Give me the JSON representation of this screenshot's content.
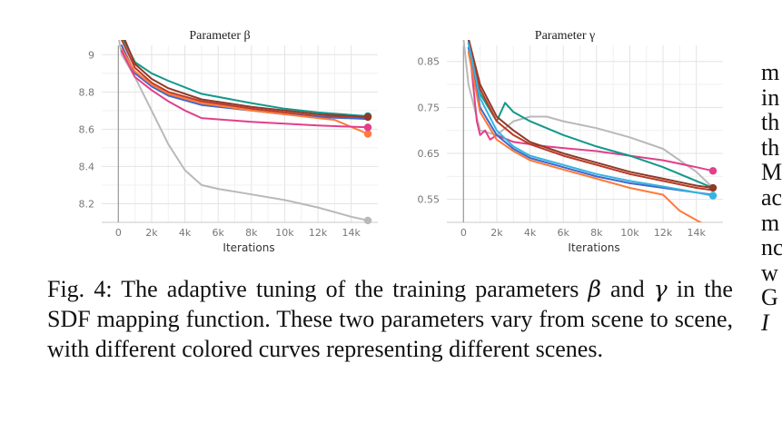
{
  "figure": {
    "caption_label": "Fig. 4:",
    "caption_part1": " The adaptive tuning of the training parameters ",
    "beta_symbol": "β",
    "caption_part2": " and ",
    "gamma_symbol": "γ",
    "caption_part3": " in the SDF mapping function. These two parameters vary from scene to scene, with different colored curves representing different scenes."
  },
  "side_text_fragments": [
    "m",
    "in",
    "th",
    "th",
    "M",
    "ac",
    "m",
    "nc",
    "w",
    "G",
    "I"
  ],
  "colors": {
    "teal": "#12988a",
    "dark_red": "#bb3a25",
    "brown": "#8f3a2a",
    "orange": "#ff7a3a",
    "pink": "#e23f8a",
    "blue": "#4466cc",
    "cyan": "#33b5e0",
    "gray": "#b9b9b9"
  },
  "chart_data": [
    {
      "type": "line",
      "title": "Parameter β",
      "xlabel": "Iterations",
      "ylabel": "",
      "xlim": [
        -1000,
        15600
      ],
      "ylim": [
        8.1,
        9.05
      ],
      "x_ticks": [
        0,
        2000,
        4000,
        6000,
        8000,
        10000,
        12000,
        14000
      ],
      "x_tick_labels": [
        "0",
        "2k",
        "4k",
        "6k",
        "8k",
        "10k",
        "12k",
        "14k"
      ],
      "y_ticks": [
        8.2,
        8.4,
        8.6,
        8.8,
        9.0
      ],
      "y_tick_labels": [
        "8.2",
        "8.4",
        "8.6",
        "8.8",
        "9"
      ],
      "grid": true,
      "legend": "none",
      "series": [
        {
          "color": "#b9b9b9",
          "end_marker": true,
          "x": [
            0,
            200,
            1000,
            2000,
            3000,
            4000,
            5000,
            6000,
            8000,
            10000,
            12000,
            14000,
            15000
          ],
          "y": [
            9.1,
            9.0,
            8.88,
            8.7,
            8.52,
            8.38,
            8.3,
            8.28,
            8.25,
            8.22,
            8.18,
            8.13,
            8.11
          ]
        },
        {
          "color": "#12988a",
          "end_marker": true,
          "x": [
            200,
            1000,
            2000,
            3000,
            5000,
            8000,
            10000,
            12000,
            15000
          ],
          "y": [
            9.1,
            8.96,
            8.9,
            8.86,
            8.79,
            8.74,
            8.71,
            8.69,
            8.67
          ]
        },
        {
          "color": "#8f3a2a",
          "end_marker": true,
          "x": [
            200,
            1000,
            2000,
            3000,
            5000,
            8000,
            10000,
            12000,
            15000
          ],
          "y": [
            9.12,
            8.95,
            8.87,
            8.82,
            8.76,
            8.72,
            8.7,
            8.68,
            8.665
          ]
        },
        {
          "color": "#bb3a25",
          "end_marker": false,
          "x": [
            200,
            1000,
            2000,
            3000,
            5000,
            8000,
            10000,
            12000,
            15000
          ],
          "y": [
            9.08,
            8.93,
            8.85,
            8.8,
            8.75,
            8.71,
            8.69,
            8.67,
            8.66
          ]
        },
        {
          "color": "#4466cc",
          "end_marker": false,
          "x": [
            200,
            1000,
            2000,
            3000,
            5000,
            8000,
            10000,
            12000,
            15000
          ],
          "y": [
            9.05,
            8.9,
            8.83,
            8.78,
            8.73,
            8.7,
            8.68,
            8.665,
            8.655
          ]
        },
        {
          "color": "#ff7a3a",
          "end_marker": true,
          "x": [
            200,
            1000,
            2000,
            3000,
            5000,
            8000,
            10000,
            12000,
            13000,
            15000
          ],
          "y": [
            9.03,
            8.91,
            8.84,
            8.79,
            8.74,
            8.7,
            8.68,
            8.66,
            8.65,
            8.575
          ]
        },
        {
          "color": "#e23f8a",
          "end_marker": true,
          "x": [
            200,
            1000,
            2000,
            3000,
            4000,
            5000,
            8000,
            10000,
            12000,
            15000
          ],
          "y": [
            9.02,
            8.88,
            8.81,
            8.75,
            8.7,
            8.66,
            8.64,
            8.63,
            8.62,
            8.61
          ]
        }
      ]
    },
    {
      "type": "line",
      "title": "Parameter γ",
      "xlabel": "Iterations",
      "ylabel": "",
      "xlim": [
        -1000,
        15600
      ],
      "ylim": [
        0.5,
        0.885
      ],
      "x_ticks": [
        0,
        2000,
        4000,
        6000,
        8000,
        10000,
        12000,
        14000
      ],
      "x_tick_labels": [
        "0",
        "2k",
        "4k",
        "6k",
        "8k",
        "10k",
        "12k",
        "14k"
      ],
      "y_ticks": [
        0.55,
        0.65,
        0.75,
        0.85
      ],
      "y_tick_labels": [
        "0.55",
        "0.65",
        "0.75",
        "0.85"
      ],
      "grid": true,
      "legend": "none",
      "series": [
        {
          "color": "#b9b9b9",
          "end_marker": false,
          "x": [
            0,
            300,
            1000,
            2000,
            3000,
            4000,
            5000,
            6000,
            8000,
            10000,
            12000,
            14000,
            15000
          ],
          "y": [
            0.9,
            0.8,
            0.7,
            0.69,
            0.72,
            0.73,
            0.73,
            0.72,
            0.705,
            0.685,
            0.66,
            0.61,
            0.575
          ]
        },
        {
          "color": "#e23f8a",
          "end_marker": true,
          "x": [
            300,
            800,
            1000,
            1300,
            1600,
            2000,
            3000,
            5000,
            8000,
            10000,
            12000,
            14000,
            15000
          ],
          "y": [
            0.9,
            0.72,
            0.69,
            0.7,
            0.68,
            0.69,
            0.675,
            0.665,
            0.655,
            0.645,
            0.635,
            0.62,
            0.612
          ]
        },
        {
          "color": "#12988a",
          "end_marker": false,
          "x": [
            300,
            1000,
            2000,
            2500,
            3000,
            4000,
            6000,
            8000,
            10000,
            12000,
            14000,
            15000
          ],
          "y": [
            0.9,
            0.78,
            0.72,
            0.76,
            0.74,
            0.72,
            0.69,
            0.665,
            0.645,
            0.62,
            0.59,
            0.575
          ]
        },
        {
          "color": "#8f3a2a",
          "end_marker": true,
          "x": [
            300,
            1000,
            2000,
            3000,
            4000,
            6000,
            8000,
            10000,
            12000,
            14000,
            15000
          ],
          "y": [
            0.9,
            0.8,
            0.73,
            0.7,
            0.675,
            0.65,
            0.63,
            0.61,
            0.595,
            0.58,
            0.575
          ]
        },
        {
          "color": "#bb3a25",
          "end_marker": false,
          "x": [
            300,
            1000,
            2000,
            3000,
            4000,
            6000,
            8000,
            10000,
            12000,
            14000,
            15000
          ],
          "y": [
            0.89,
            0.79,
            0.72,
            0.69,
            0.67,
            0.645,
            0.625,
            0.605,
            0.59,
            0.575,
            0.57
          ]
        },
        {
          "color": "#4466cc",
          "end_marker": false,
          "x": [
            300,
            1000,
            2000,
            3000,
            4000,
            6000,
            8000,
            10000,
            12000,
            14000,
            15000
          ],
          "y": [
            0.88,
            0.75,
            0.69,
            0.66,
            0.64,
            0.62,
            0.6,
            0.585,
            0.575,
            0.565,
            0.56
          ]
        },
        {
          "color": "#33b5e0",
          "end_marker": true,
          "x": [
            300,
            1000,
            2000,
            3000,
            4000,
            6000,
            8000,
            10000,
            12000,
            14000,
            15000
          ],
          "y": [
            0.89,
            0.77,
            0.7,
            0.665,
            0.645,
            0.625,
            0.605,
            0.59,
            0.578,
            0.565,
            0.558
          ]
        },
        {
          "color": "#ff7a3a",
          "end_marker": false,
          "x": [
            300,
            1000,
            2000,
            3000,
            4000,
            6000,
            8000,
            10000,
            12000,
            13000,
            14000,
            14500
          ],
          "y": [
            0.87,
            0.74,
            0.68,
            0.655,
            0.635,
            0.615,
            0.595,
            0.575,
            0.56,
            0.525,
            0.505,
            0.495
          ]
        }
      ]
    }
  ]
}
